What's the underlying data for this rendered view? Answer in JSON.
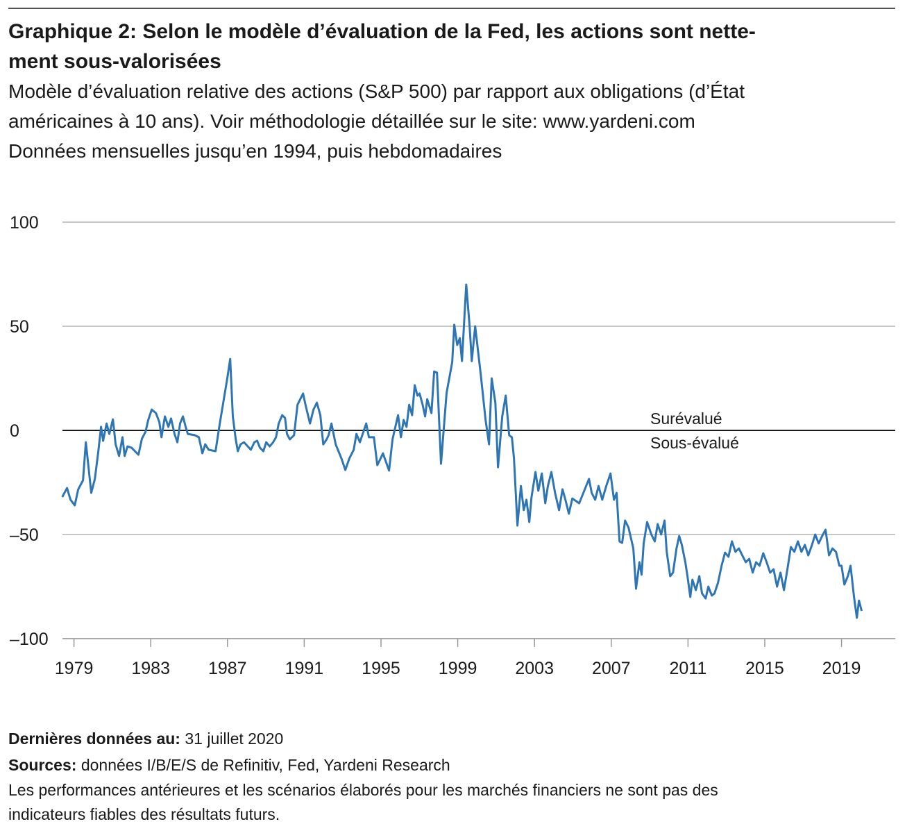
{
  "chart_data": {
    "type": "line",
    "title": [
      "Graphique 2: Selon le modèle d’évaluation de la Fed, les actions sont nette-",
      "ment sous-valorisées"
    ],
    "subtitle": [
      "Modèle d’évaluation relative des actions (S&P 500) par rapport aux obligations (d’État",
      "américaines à 10 ans). Voir méthodologie détaillée sur le site: www.yardeni.com",
      "Données mensuelles jusqu’en 1994, puis hebdomadaires"
    ],
    "annotations": [
      "Surévalué",
      "Sous-évalué"
    ],
    "color": "#2e75b6",
    "grid": true,
    "xlim": [
      1978.4,
      2021.8
    ],
    "xticks": [
      1979,
      1983,
      1987,
      1991,
      1995,
      1999,
      2003,
      2007,
      2011,
      2015,
      2019
    ],
    "ylim": [
      -100,
      100
    ],
    "yticks": [
      {
        "value": -100,
        "label": "–100"
      },
      {
        "value": -50,
        "label": "–50"
      },
      0,
      50,
      100
    ],
    "x": [
      1978.39,
      1978.64,
      1978.82,
      1979.04,
      1979.22,
      1979.47,
      1979.62,
      1979.9,
      1980.09,
      1980.27,
      1980.41,
      1980.52,
      1980.7,
      1980.84,
      1981.03,
      1981.17,
      1981.35,
      1981.53,
      1981.64,
      1981.79,
      1982.0,
      1982.18,
      1982.36,
      1982.54,
      1982.73,
      1982.87,
      1983.05,
      1983.27,
      1983.45,
      1983.56,
      1983.74,
      1983.92,
      1984.06,
      1984.24,
      1984.39,
      1984.53,
      1984.68,
      1984.82,
      1984.93,
      1985.29,
      1985.51,
      1985.69,
      1985.84,
      1986.02,
      1986.38,
      1986.6,
      1986.78,
      1986.99,
      1987.14,
      1987.28,
      1987.43,
      1987.54,
      1987.68,
      1987.86,
      1988.22,
      1988.4,
      1988.55,
      1988.69,
      1988.87,
      1989.02,
      1989.2,
      1989.38,
      1989.53,
      1989.67,
      1989.85,
      1990.0,
      1990.1,
      1990.25,
      1990.47,
      1990.65,
      1990.94,
      1991.08,
      1991.3,
      1991.48,
      1991.66,
      1991.84,
      1991.99,
      1992.17,
      1992.27,
      1992.42,
      1992.64,
      1992.93,
      1993.14,
      1993.36,
      1993.58,
      1993.72,
      1993.9,
      1994.23,
      1994.37,
      1994.63,
      1994.81,
      1994.99,
      1995.1,
      1995.42,
      1995.6,
      1995.75,
      1995.89,
      1996.04,
      1996.18,
      1996.33,
      1996.47,
      1996.62,
      1996.76,
      1996.9,
      1997.01,
      1997.16,
      1997.3,
      1997.41,
      1997.63,
      1997.77,
      1997.92,
      1998.13,
      1998.42,
      1998.71,
      1998.82,
      1998.97,
      1999.11,
      1999.22,
      1999.44,
      1999.62,
      1999.73,
      1999.91,
      2000.2,
      2000.45,
      2000.63,
      2000.77,
      2000.96,
      2001.1,
      2001.32,
      2001.5,
      2001.68,
      2001.82,
      2001.93,
      2002.11,
      2002.29,
      2002.44,
      2002.58,
      2002.73,
      2002.84,
      2003.05,
      2003.2,
      2003.38,
      2003.56,
      2003.7,
      2003.88,
      2004.07,
      2004.28,
      2004.46,
      2004.61,
      2004.79,
      2004.97,
      2005.33,
      2005.69,
      2005.84,
      2005.98,
      2006.16,
      2006.34,
      2006.53,
      2006.74,
      2006.96,
      2007.14,
      2007.28,
      2007.43,
      2007.57,
      2007.72,
      2007.9,
      2008.15,
      2008.29,
      2008.47,
      2008.58,
      2008.69,
      2008.87,
      2009.09,
      2009.27,
      2009.42,
      2009.6,
      2009.78,
      2009.89,
      2010.07,
      2010.22,
      2010.4,
      2010.54,
      2010.68,
      2010.86,
      2010.97,
      2011.12,
      2011.23,
      2011.41,
      2011.59,
      2011.73,
      2011.92,
      2012.06,
      2012.24,
      2012.38,
      2012.56,
      2012.75,
      2012.93,
      2013.11,
      2013.29,
      2013.47,
      2013.65,
      2013.83,
      2014.01,
      2014.19,
      2014.37,
      2014.55,
      2014.73,
      2014.92,
      2015.1,
      2015.28,
      2015.46,
      2015.64,
      2015.82,
      2016.0,
      2016.18,
      2016.36,
      2016.54,
      2016.73,
      2016.91,
      2017.09,
      2017.27,
      2017.45,
      2017.63,
      2017.81,
      2017.99,
      2018.17,
      2018.35,
      2018.53,
      2018.71,
      2018.89,
      2019.0,
      2019.15,
      2019.33,
      2019.47,
      2019.65,
      2019.8,
      2019.91,
      2020.05
    ],
    "values": [
      -32,
      -27.7,
      -33.3,
      -36,
      -28.3,
      -24,
      -5.7,
      -30,
      -23.3,
      -10,
      1.7,
      -5,
      3.3,
      -1.7,
      5.3,
      -6.7,
      -12.3,
      -3.3,
      -12.3,
      -7.7,
      -8.3,
      -10,
      -11.7,
      -4,
      -0.7,
      5,
      10,
      8.3,
      4,
      -3.3,
      6.7,
      1.7,
      5.7,
      -1.7,
      -5.7,
      3.3,
      6.7,
      1.7,
      -1.7,
      -2.3,
      -3.3,
      -11,
      -6.7,
      -9.3,
      -10,
      3.3,
      13.3,
      25,
      34.3,
      6.7,
      -4.3,
      -10,
      -6.7,
      -5.7,
      -9.3,
      -5.7,
      -5,
      -8.3,
      -10,
      -5.7,
      -7.7,
      -5.7,
      -3.3,
      3.3,
      7.3,
      6,
      -1.7,
      -4.3,
      -2.3,
      12.3,
      17.7,
      11.7,
      3.3,
      10,
      13.3,
      7.3,
      -6.7,
      -4.3,
      -2.3,
      3.3,
      -6.7,
      -13.3,
      -19,
      -13.3,
      -9.3,
      -1.7,
      -5.7,
      3.3,
      -3.3,
      -3.3,
      -16.7,
      -13.3,
      -11,
      -19.3,
      -4.3,
      1.7,
      7.3,
      -3.3,
      5,
      1.7,
      12.3,
      7.3,
      21.7,
      16.7,
      17.7,
      12.7,
      6.7,
      15,
      8.3,
      28.3,
      27.7,
      -16,
      18,
      32.7,
      50.7,
      41,
      44.3,
      33.3,
      70,
      50,
      33.3,
      50,
      26.7,
      5,
      -6.7,
      25,
      13.3,
      -17.7,
      6.7,
      16.7,
      -2.3,
      -3.3,
      -13.3,
      -45.7,
      -26.7,
      -38.3,
      -33.3,
      -44,
      -32.3,
      -20,
      -29,
      -20.7,
      -35,
      -26.7,
      -20,
      -30,
      -38.3,
      -28.3,
      -33.3,
      -40,
      -32.7,
      -35,
      -26.7,
      -23.3,
      -30,
      -33.3,
      -26.7,
      -33.3,
      -26.7,
      -20.7,
      -33.3,
      -30,
      -53.3,
      -54,
      -43.3,
      -46.7,
      -56.7,
      -76,
      -63.3,
      -69.3,
      -54.3,
      -44,
      -50,
      -53.3,
      -45,
      -50,
      -43.3,
      -58.3,
      -70,
      -68.3,
      -56.7,
      -50.7,
      -55,
      -63.3,
      -70,
      -80,
      -71.7,
      -76.7,
      -70,
      -78.3,
      -80.7,
      -75,
      -79.3,
      -78.3,
      -73.3,
      -65,
      -58.7,
      -60.7,
      -53.3,
      -58.3,
      -56.7,
      -60,
      -63.3,
      -61.7,
      -68.3,
      -63.3,
      -65,
      -59,
      -63.3,
      -68.3,
      -66.7,
      -75,
      -68.3,
      -76.7,
      -66.7,
      -56,
      -58.3,
      -53.3,
      -58.3,
      -55,
      -60,
      -55.3,
      -50,
      -54.3,
      -50.7,
      -47.7,
      -60,
      -56.7,
      -58.3,
      -65,
      -65,
      -74,
      -70,
      -65,
      -80,
      -90,
      -81.7,
      -86.7
    ]
  },
  "footer": {
    "notes": [
      {
        "label": "Dernières données au:",
        "text": "31 juillet 2020"
      },
      {
        "label": "Sources:",
        "text": "données I/B/E/S de Refinitiv, Fed, Yardeni Research"
      }
    ],
    "disclaimer": [
      "Les performances antérieures et les scénarios élaborés pour les marchés financiers ne sont pas des",
      "indicateurs fiables des résultats futurs."
    ]
  }
}
